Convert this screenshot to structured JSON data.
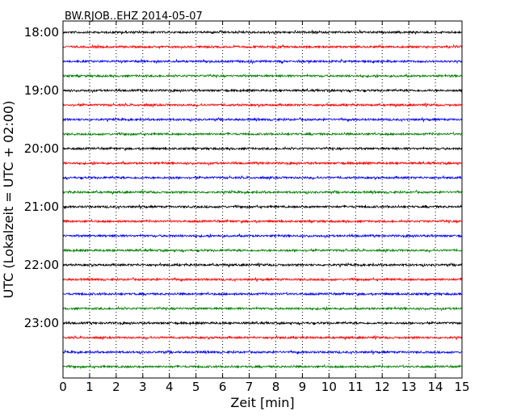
{
  "chart_data": {
    "type": "line",
    "title": "BW.RJOB..EHZ 2014-05-07",
    "xlabel": "Zeit  [min]",
    "ylabel": "UTC (Lokalzeit = UTC + 02:00)",
    "xlim": [
      0,
      15
    ],
    "x_ticks": [
      "0",
      "1",
      "2",
      "3",
      "4",
      "5",
      "6",
      "7",
      "8",
      "9",
      "10",
      "11",
      "12",
      "13",
      "14",
      "15"
    ],
    "y_tick_labels": [
      "18:00",
      "19:00",
      "20:00",
      "21:00",
      "22:00",
      "23:00"
    ],
    "grid": "vertical dotted lines at each minute",
    "trace_colors": [
      "#000000",
      "#ff0000",
      "#0000ff",
      "#008000"
    ],
    "traces_per_hour": 4,
    "trace_interval_min": 15,
    "trace_start_times": [
      "18:00",
      "18:15",
      "18:30",
      "18:45",
      "19:00",
      "19:15",
      "19:30",
      "19:45",
      "20:00",
      "20:15",
      "20:30",
      "20:45",
      "21:00",
      "21:15",
      "21:30",
      "21:45",
      "22:00",
      "22:15",
      "22:30",
      "22:45",
      "23:00",
      "23:15",
      "23:30",
      "23:45"
    ]
  }
}
